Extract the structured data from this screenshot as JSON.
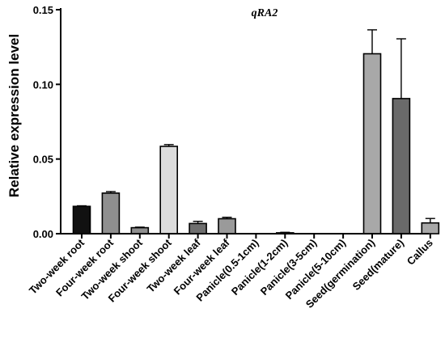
{
  "chart_data": {
    "type": "bar",
    "title": "qRA2",
    "xlabel": "",
    "ylabel": "Relative expression level",
    "ylim": [
      0,
      0.15
    ],
    "yticks": [
      0.0,
      0.05,
      0.1,
      0.15
    ],
    "ytick_labels": [
      "0.00",
      "0.05",
      "0.10",
      "0.15"
    ],
    "categories": [
      "Two-week root",
      "Four-week root",
      "Two-week shoot",
      "Four-week shoot",
      "Two-week leaf",
      "Four-week leaf",
      "Panicle(0.5-1cm)",
      "Panicle(1-2cm)",
      "Panicle(3-5cm)",
      "Panicle(5-10cm)",
      "Seed(germination)",
      "Seed(mature)",
      "Callus"
    ],
    "values": [
      0.0183,
      0.0272,
      0.004,
      0.0585,
      0.0068,
      0.01,
      0.0,
      0.0006,
      0.0,
      0.0,
      0.1205,
      0.0905,
      0.0072
    ],
    "errors": [
      0.0004,
      0.001,
      0.0004,
      0.0012,
      0.0015,
      0.001,
      0.0,
      0.0003,
      0.0,
      0.0,
      0.016,
      0.04,
      0.003
    ],
    "colors": [
      "#111111",
      "#8f8f8f",
      "#8f8f8f",
      "#dcdcdc",
      "#6e6e6e",
      "#9a9a9a",
      "#ffffff",
      "#8f8f8f",
      "#ffffff",
      "#ffffff",
      "#a8a8a8",
      "#6a6a6a",
      "#a8a8a8"
    ],
    "grid": false,
    "legend": "none"
  }
}
